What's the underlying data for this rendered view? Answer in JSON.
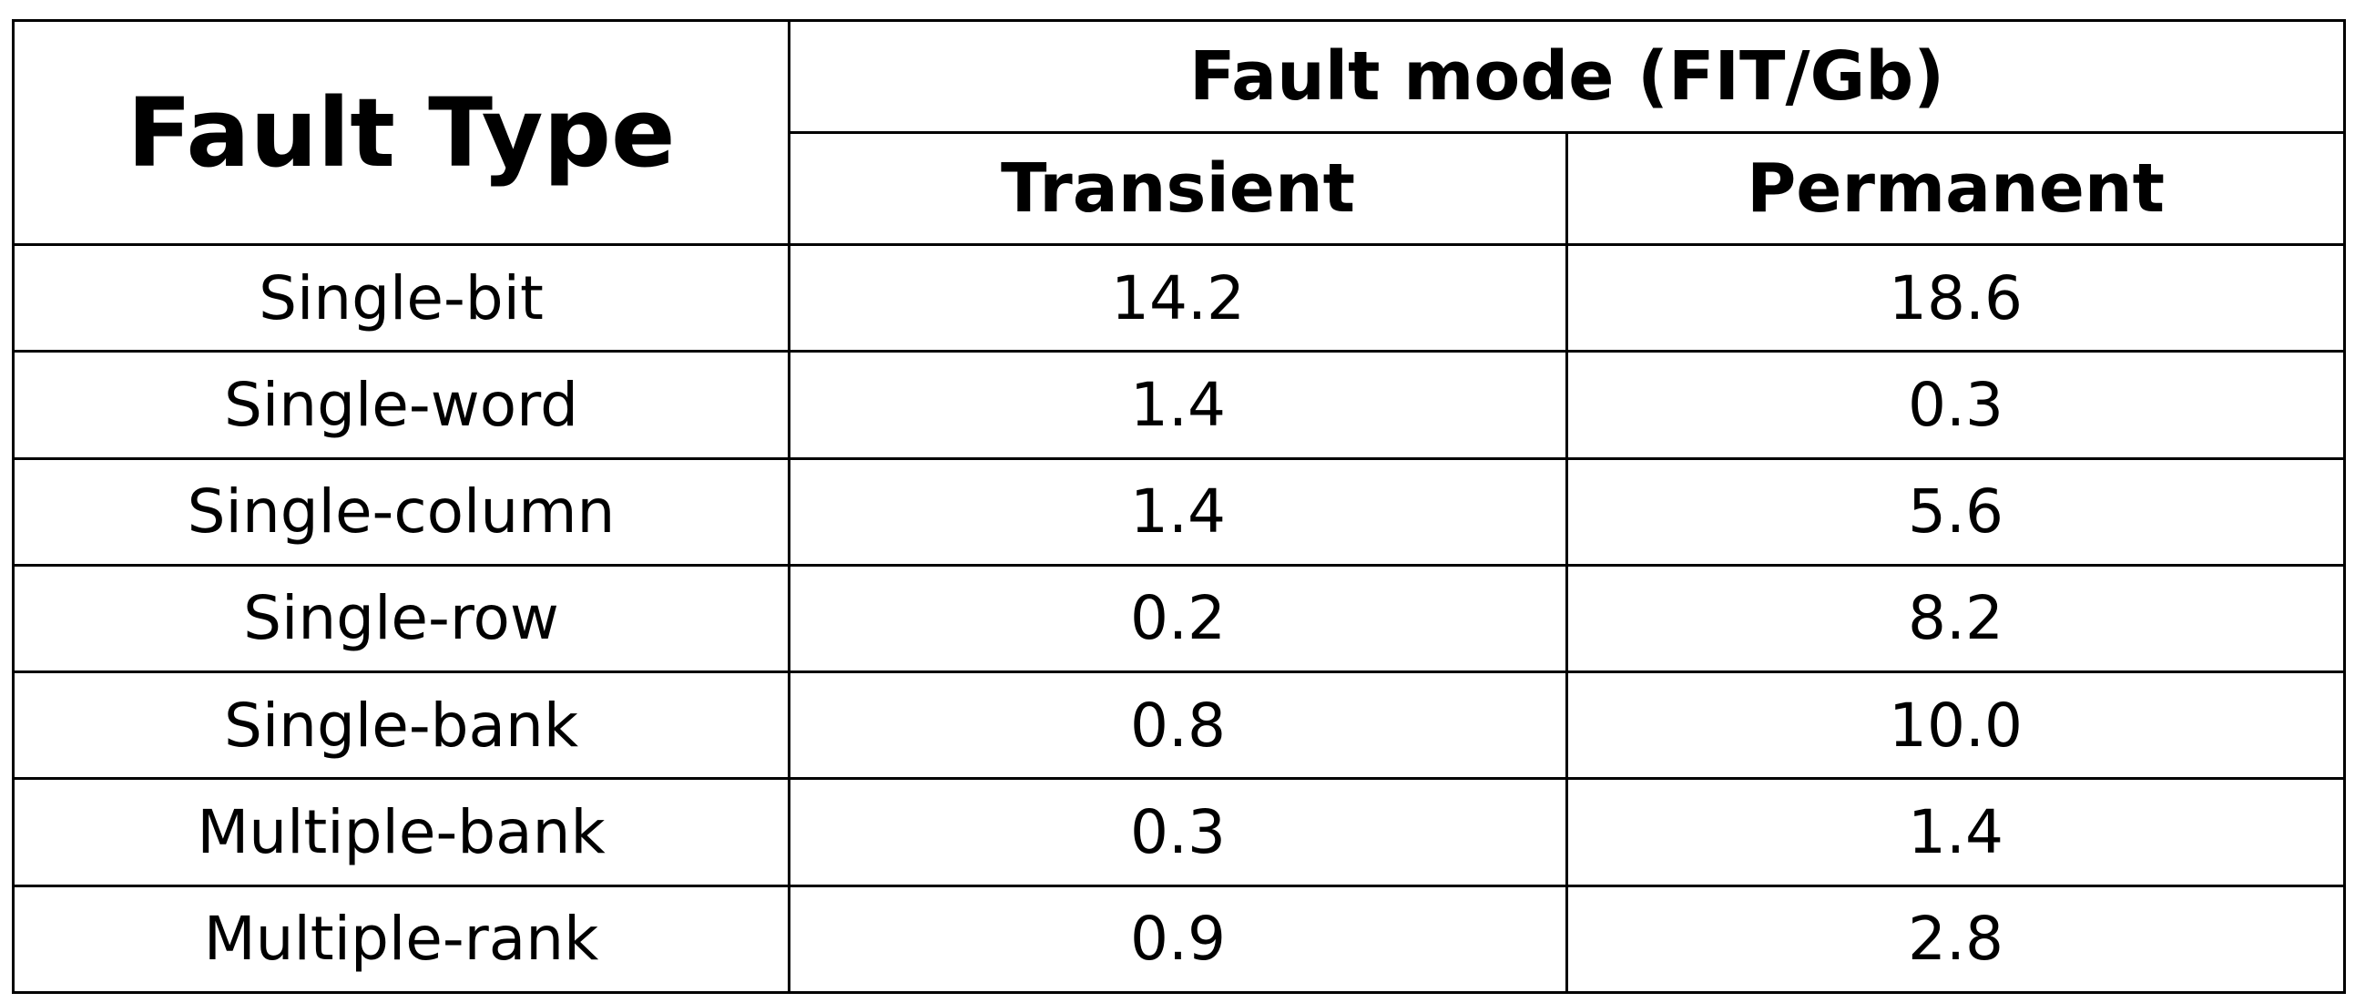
{
  "chart_data": {
    "type": "table",
    "columns": {
      "row_header": "Fault Type",
      "group_header": "Fault mode (FIT/Gb)",
      "subheaders": [
        "Transient",
        "Permanent"
      ]
    },
    "rows": [
      {
        "fault_type": "Single-bit",
        "transient": "14.2",
        "permanent": "18.6"
      },
      {
        "fault_type": "Single-word",
        "transient": "1.4",
        "permanent": "0.3"
      },
      {
        "fault_type": "Single-column",
        "transient": "1.4",
        "permanent": "5.6"
      },
      {
        "fault_type": "Single-row",
        "transient": "0.2",
        "permanent": "8.2"
      },
      {
        "fault_type": "Single-bank",
        "transient": "0.8",
        "permanent": "10.0"
      },
      {
        "fault_type": "Multiple-bank",
        "transient": "0.3",
        "permanent": "1.4"
      },
      {
        "fault_type": "Multiple-rank",
        "transient": "0.9",
        "permanent": "2.8"
      }
    ]
  }
}
